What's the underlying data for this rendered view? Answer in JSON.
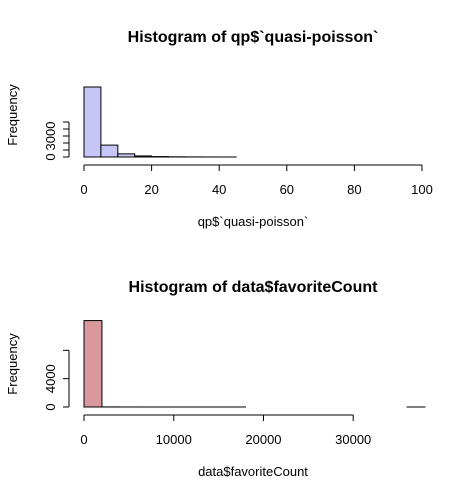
{
  "chart_data": [
    {
      "type": "bar",
      "title": "Histogram of qp$`quasi-poisson`",
      "xlabel": "qp$`quasi-poisson`",
      "ylabel": "Frequency",
      "xlim": [
        0,
        100
      ],
      "ylim": [
        0,
        12000
      ],
      "x_ticks": [
        0,
        20,
        40,
        60,
        80,
        100
      ],
      "y_ticks": [
        0,
        1000,
        2000,
        3000,
        4000,
        5000
      ],
      "y_tick_labels": [
        "0",
        "",
        "",
        "3000",
        "",
        ""
      ],
      "bin_edges": [
        0,
        5,
        10,
        15,
        20,
        25,
        30,
        35,
        40,
        45
      ],
      "values": [
        10000,
        1700,
        450,
        150,
        60,
        25,
        12,
        6,
        3
      ],
      "bar_color": "#c6c6f8"
    },
    {
      "type": "bar",
      "title": "Histogram of data$favoriteCount",
      "xlabel": "data$favoriteCount",
      "ylabel": "Frequency",
      "xlim": [
        0,
        38000
      ],
      "ylim": [
        0,
        12000
      ],
      "x_ticks": [
        0,
        10000,
        20000,
        30000
      ],
      "y_ticks": [
        0,
        4000,
        8000
      ],
      "y_tick_labels": [
        "0",
        "4000",
        ""
      ],
      "bin_edges": [
        0,
        2000,
        4000,
        6000,
        8000,
        10000,
        12000,
        14000,
        16000,
        18000,
        20000,
        22000,
        24000,
        26000,
        28000,
        30000,
        32000,
        34000,
        36000,
        38000
      ],
      "values": [
        12200,
        15,
        5,
        3,
        2,
        1,
        1,
        1,
        1,
        0,
        0,
        0,
        0,
        0,
        0,
        0,
        0,
        0,
        1
      ],
      "bar_color": "#d9999c"
    }
  ]
}
